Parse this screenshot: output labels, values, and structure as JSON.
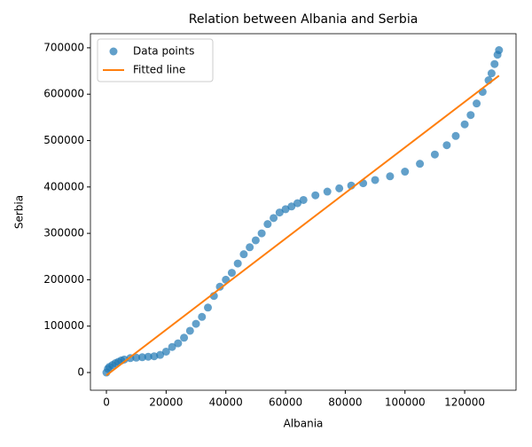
{
  "chart_data": {
    "type": "scatter",
    "title": "Relation between Albania and Serbia",
    "x_label": "Albania",
    "y_label": "Serbia",
    "xlim": [
      -5350,
      137200
    ],
    "ylim": [
      -38200,
      730400
    ],
    "xticks": [
      0,
      20000,
      40000,
      60000,
      80000,
      100000,
      120000
    ],
    "yticks": [
      0,
      100000,
      200000,
      300000,
      400000,
      500000,
      600000,
      700000
    ],
    "legend": "upper left",
    "series": [
      {
        "name": "Data points",
        "type": "scatter",
        "color": "#1f77b4",
        "x": [
          0,
          500,
          1000,
          2000,
          3000,
          4000,
          5000,
          6000,
          8000,
          10000,
          12000,
          14000,
          16000,
          18000,
          20000,
          22000,
          24000,
          26000,
          28000,
          30000,
          32000,
          34000,
          36000,
          38000,
          40000,
          42000,
          44000,
          46000,
          48000,
          50000,
          52000,
          54000,
          56000,
          58000,
          60000,
          62000,
          64000,
          66000,
          70000,
          74000,
          78000,
          82000,
          86000,
          90000,
          95000,
          100000,
          105000,
          110000,
          114000,
          117000,
          120000,
          122000,
          124000,
          126000,
          128000,
          129000,
          130000,
          131000,
          131500
        ],
        "values": [
          0,
          8000,
          12000,
          16000,
          20000,
          23000,
          26000,
          28000,
          31000,
          32000,
          33000,
          34000,
          35000,
          38000,
          45000,
          55000,
          63000,
          75000,
          90000,
          105000,
          120000,
          140000,
          165000,
          185000,
          200000,
          215000,
          235000,
          255000,
          270000,
          285000,
          300000,
          320000,
          333000,
          345000,
          352000,
          358000,
          365000,
          372000,
          382000,
          390000,
          397000,
          403000,
          408000,
          415000,
          423000,
          433000,
          450000,
          470000,
          490000,
          510000,
          535000,
          555000,
          580000,
          605000,
          630000,
          645000,
          665000,
          685000,
          695000
        ]
      },
      {
        "name": "Fitted line",
        "type": "line",
        "color": "#ff7f0e",
        "x": [
          0,
          131500
        ],
        "values": [
          -6000,
          640000
        ]
      }
    ]
  }
}
